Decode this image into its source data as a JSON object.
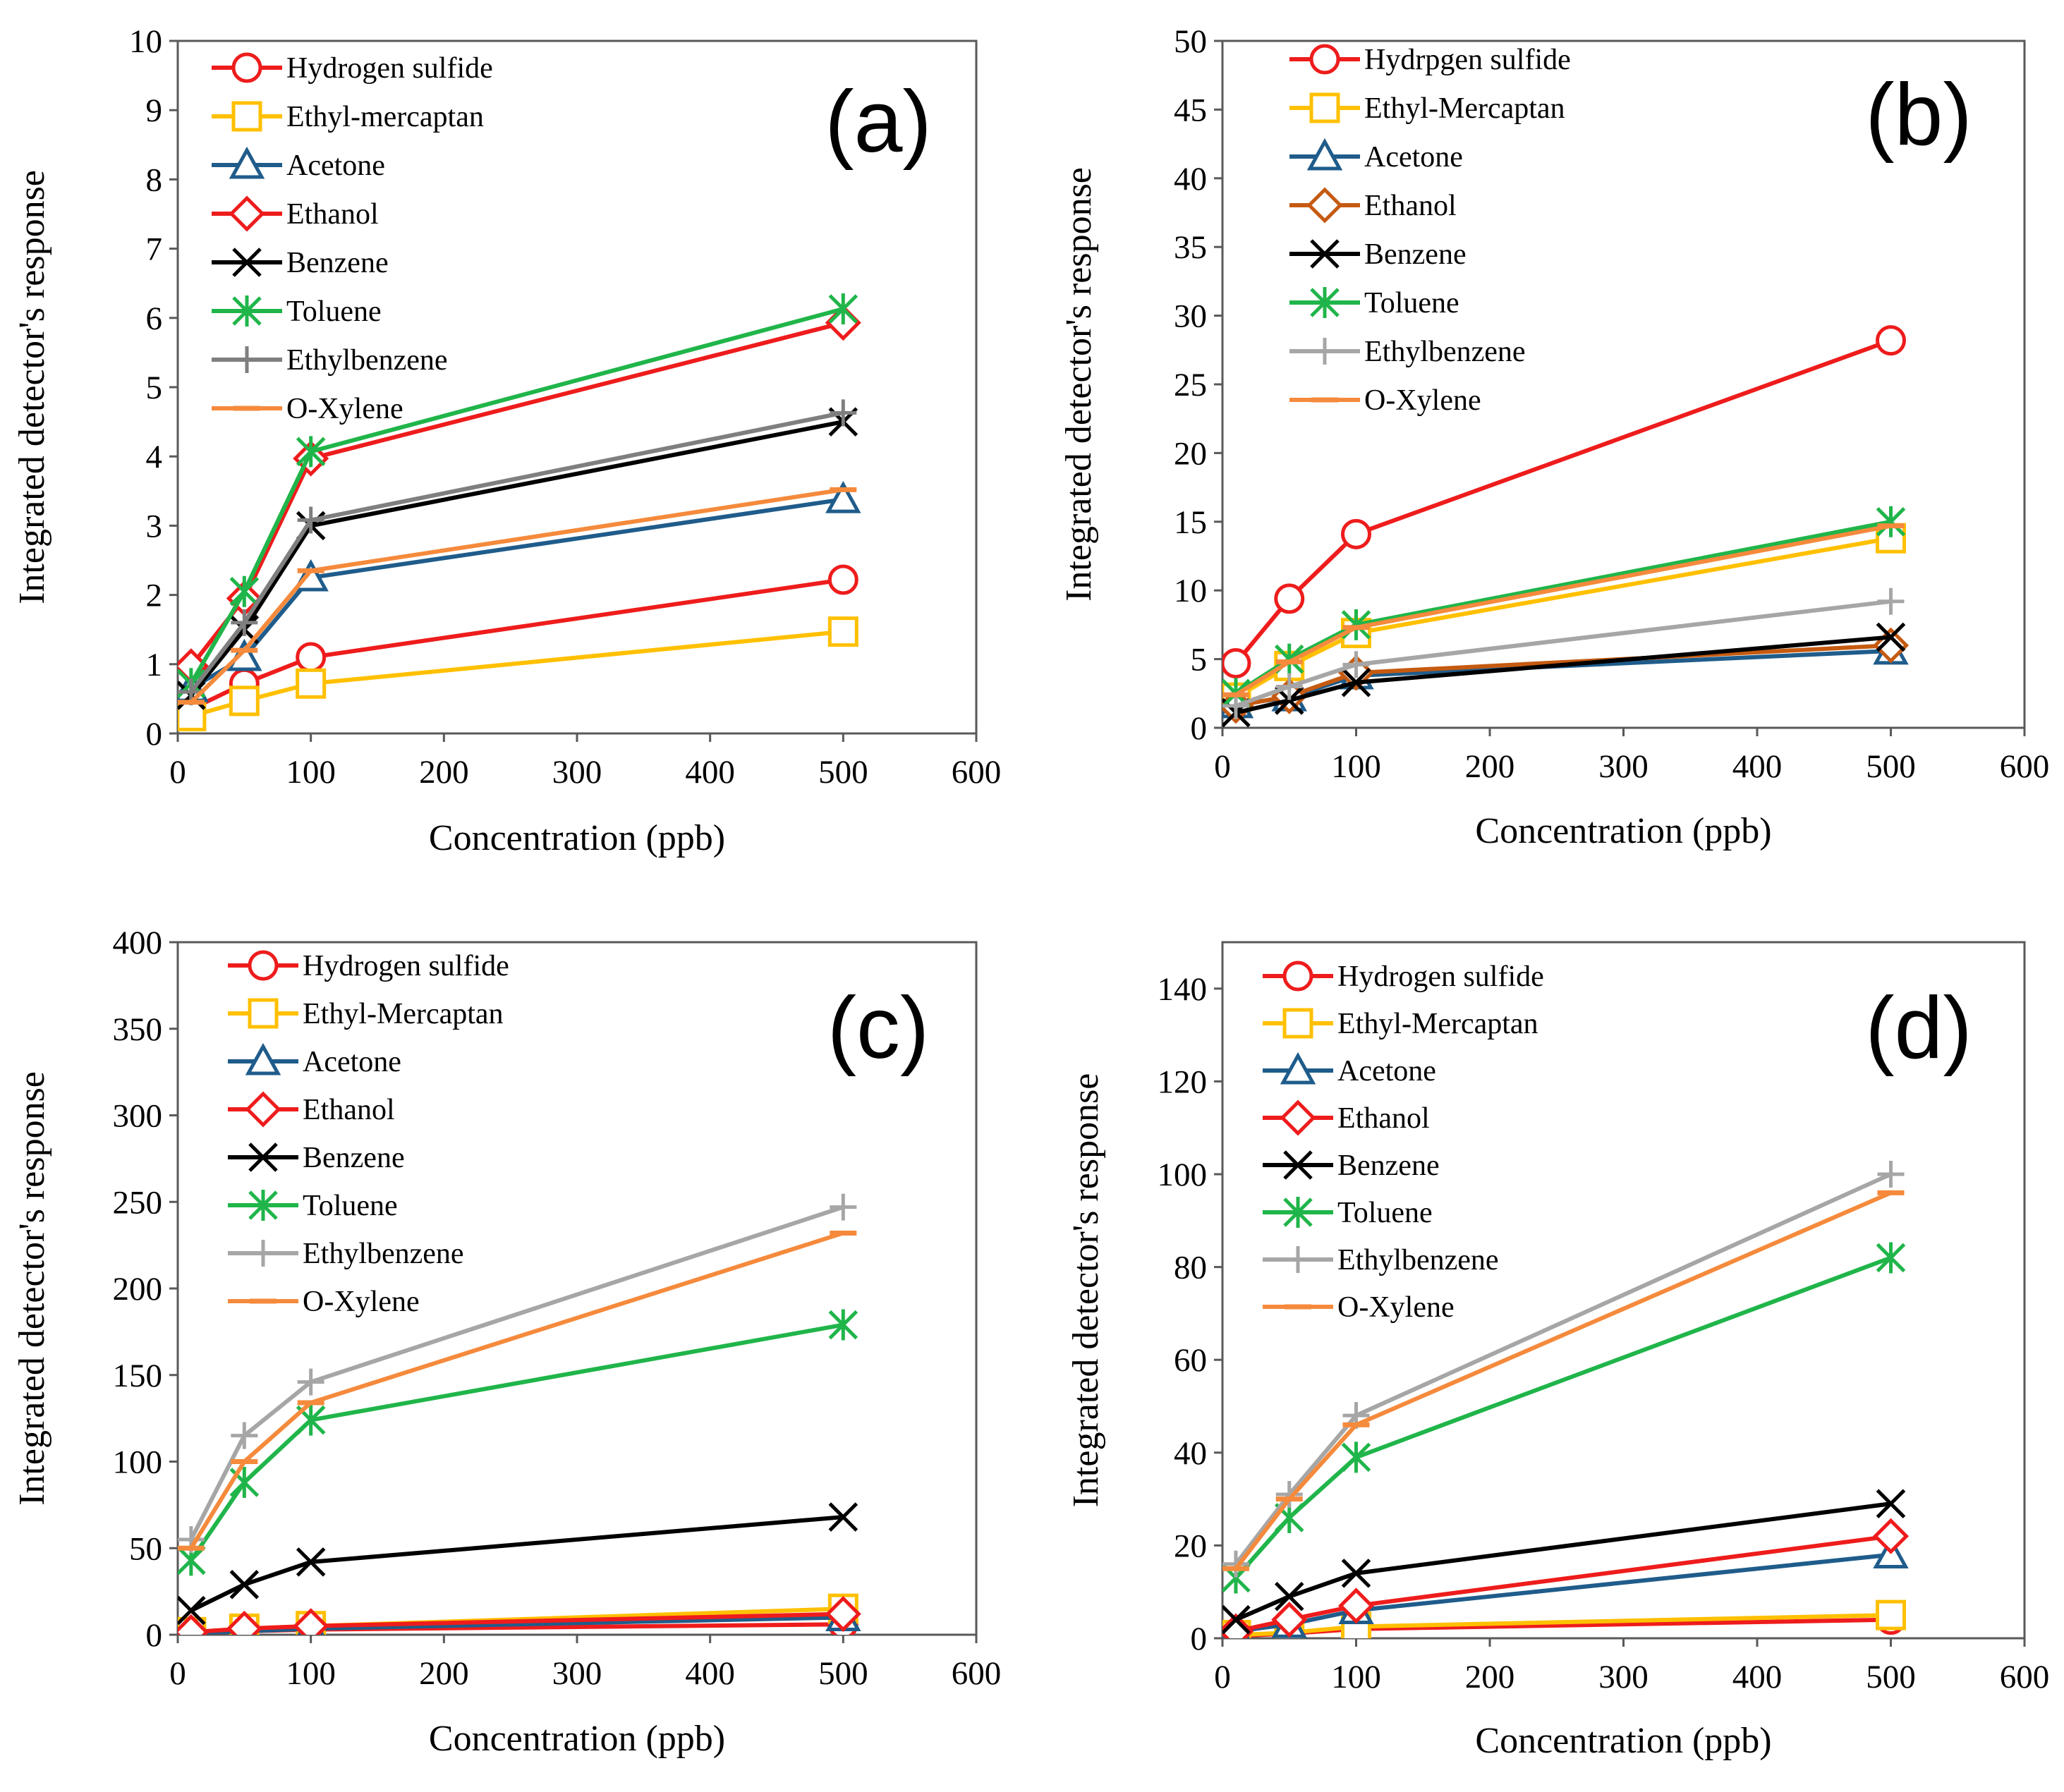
{
  "chart_data": [
    {
      "type": "line",
      "panel": "(a)",
      "xlabel": "Concentration (ppb)",
      "ylabel": "Integrated detector's response",
      "xlim": [
        0,
        600
      ],
      "ylim": [
        0,
        10
      ],
      "xticks": [
        0,
        100,
        200,
        300,
        400,
        500,
        600
      ],
      "yticks": [
        0,
        1,
        2,
        3,
        4,
        5,
        6,
        7,
        8,
        9,
        10
      ],
      "x": [
        10,
        50,
        100,
        500
      ],
      "series": [
        {
          "name": "Hydrogen sulfide",
          "color": "#ee1c1c",
          "marker": "circle",
          "values": [
            0.35,
            0.72,
            1.1,
            2.22
          ]
        },
        {
          "name": "Ethyl-mercaptan",
          "color": "#ffc000",
          "marker": "square",
          "values": [
            0.25,
            0.47,
            0.72,
            1.47
          ]
        },
        {
          "name": "Acetone",
          "color": "#1f5c8b",
          "marker": "triangle",
          "values": [
            0.65,
            1.1,
            2.25,
            3.38
          ]
        },
        {
          "name": "Ethanol",
          "color": "#ee1c1c",
          "marker": "diamond",
          "values": [
            0.97,
            1.95,
            3.97,
            5.93
          ]
        },
        {
          "name": "Benzene",
          "color": "#000000",
          "marker": "x",
          "values": [
            0.55,
            1.5,
            3.0,
            4.5
          ]
        },
        {
          "name": "Toluene",
          "color": "#20b54a",
          "marker": "star",
          "values": [
            0.72,
            2.05,
            4.07,
            6.13
          ]
        },
        {
          "name": "Ethylbenzene",
          "color": "#7f7f7f",
          "marker": "plus",
          "values": [
            0.6,
            1.6,
            3.08,
            4.63
          ]
        },
        {
          "name": "O-Xylene",
          "color": "#f58a3c",
          "marker": "dash",
          "values": [
            0.45,
            1.2,
            2.35,
            3.52
          ]
        }
      ]
    },
    {
      "type": "line",
      "panel": "(b)",
      "xlabel": "Concentration (ppb)",
      "ylabel": "Integrated detector's response",
      "xlim": [
        0,
        600
      ],
      "ylim": [
        0,
        50
      ],
      "xticks": [
        0,
        100,
        200,
        300,
        400,
        500,
        600
      ],
      "yticks": [
        0,
        5,
        10,
        15,
        20,
        25,
        30,
        35,
        40,
        45,
        50
      ],
      "x": [
        10,
        50,
        100,
        500
      ],
      "series": [
        {
          "name": "Hydrpgen sulfide",
          "color": "#ee1c1c",
          "marker": "circle",
          "values": [
            4.7,
            9.4,
            14.1,
            28.2
          ]
        },
        {
          "name": "Ethyl-Mercaptan",
          "color": "#ffc000",
          "marker": "square",
          "values": [
            2.2,
            4.5,
            6.9,
            13.8
          ]
        },
        {
          "name": "Acetone",
          "color": "#1f5c8b",
          "marker": "triangle",
          "values": [
            1.7,
            2.2,
            3.8,
            5.6
          ]
        },
        {
          "name": "Ethanol",
          "color": "#c55a11",
          "marker": "diamond",
          "values": [
            1.6,
            2.3,
            4.0,
            6.0
          ]
        },
        {
          "name": "Benzene",
          "color": "#000000",
          "marker": "x",
          "values": [
            1.1,
            2.0,
            3.3,
            6.6
          ]
        },
        {
          "name": "Toluene",
          "color": "#20b54a",
          "marker": "star",
          "values": [
            2.5,
            5.0,
            7.5,
            15.0
          ]
        },
        {
          "name": "Ethylbenzene",
          "color": "#a6a6a6",
          "marker": "plus",
          "values": [
            1.6,
            3.0,
            4.6,
            9.2
          ]
        },
        {
          "name": "O-Xylene",
          "color": "#f58a3c",
          "marker": "dash",
          "values": [
            2.4,
            4.8,
            7.3,
            14.7
          ]
        }
      ]
    },
    {
      "type": "line",
      "panel": "(c)",
      "xlabel": "Concentration (ppb)",
      "ylabel": "Integrated detector's response",
      "xlim": [
        0,
        600
      ],
      "ylim": [
        0,
        400
      ],
      "xticks": [
        0,
        100,
        200,
        300,
        400,
        500,
        600
      ],
      "yticks": [
        0,
        50,
        100,
        150,
        200,
        250,
        300,
        350,
        400
      ],
      "x": [
        10,
        50,
        100,
        500
      ],
      "series": [
        {
          "name": "Hydrogen sulfide",
          "color": "#ee1c1c",
          "marker": "circle",
          "values": [
            1,
            2,
            3,
            6
          ]
        },
        {
          "name": "Ethyl-Mercaptan",
          "color": "#ffc000",
          "marker": "square",
          "values": [
            1.5,
            3.5,
            5,
            15
          ]
        },
        {
          "name": "Acetone",
          "color": "#1f5c8b",
          "marker": "triangle",
          "values": [
            1,
            2,
            3.5,
            10
          ]
        },
        {
          "name": "Ethanol",
          "color": "#ee1c1c",
          "marker": "diamond",
          "values": [
            1.5,
            3.5,
            5,
            12
          ]
        },
        {
          "name": "Benzene",
          "color": "#000000",
          "marker": "x",
          "values": [
            14,
            29,
            42,
            68
          ]
        },
        {
          "name": "Toluene",
          "color": "#20b54a",
          "marker": "star",
          "values": [
            43,
            88,
            124,
            179
          ]
        },
        {
          "name": "Ethylbenzene",
          "color": "#a6a6a6",
          "marker": "plus",
          "values": [
            55,
            115,
            146,
            247
          ]
        },
        {
          "name": "O-Xylene",
          "color": "#f58a3c",
          "marker": "dash",
          "values": [
            50,
            100,
            134,
            232
          ]
        }
      ]
    },
    {
      "type": "line",
      "panel": "(d)",
      "xlabel": "Concentration (ppb)",
      "ylabel": "Integrated detector's response",
      "xlim": [
        0,
        600
      ],
      "ylim": [
        0,
        150
      ],
      "xticks": [
        0,
        100,
        200,
        300,
        400,
        500,
        600
      ],
      "yticks": [
        0,
        20,
        40,
        60,
        80,
        100,
        120,
        140
      ],
      "x": [
        10,
        50,
        100,
        500
      ],
      "series": [
        {
          "name": "Hydrogen sulfide",
          "color": "#ee1c1c",
          "marker": "circle",
          "values": [
            0.5,
            1.0,
            2.0,
            4.0
          ]
        },
        {
          "name": "Ethyl-Mercaptan",
          "color": "#ffc000",
          "marker": "square",
          "values": [
            0.7,
            1.2,
            2.5,
            5.0
          ]
        },
        {
          "name": "Acetone",
          "color": "#1f5c8b",
          "marker": "triangle",
          "values": [
            1.5,
            3.0,
            6.0,
            18.0
          ]
        },
        {
          "name": "Ethanol",
          "color": "#ee1c1c",
          "marker": "diamond",
          "values": [
            1.5,
            4.0,
            7.0,
            22.0
          ]
        },
        {
          "name": "Benzene",
          "color": "#000000",
          "marker": "x",
          "values": [
            4.0,
            9.0,
            14.0,
            29.0
          ]
        },
        {
          "name": "Toluene",
          "color": "#20b54a",
          "marker": "star",
          "values": [
            13,
            26,
            39,
            82
          ]
        },
        {
          "name": "Ethylbenzene",
          "color": "#a6a6a6",
          "marker": "plus",
          "values": [
            16,
            31,
            48,
            100
          ]
        },
        {
          "name": "O-Xylene",
          "color": "#f58a3c",
          "marker": "dash",
          "values": [
            15,
            30,
            46,
            96
          ]
        }
      ]
    }
  ]
}
